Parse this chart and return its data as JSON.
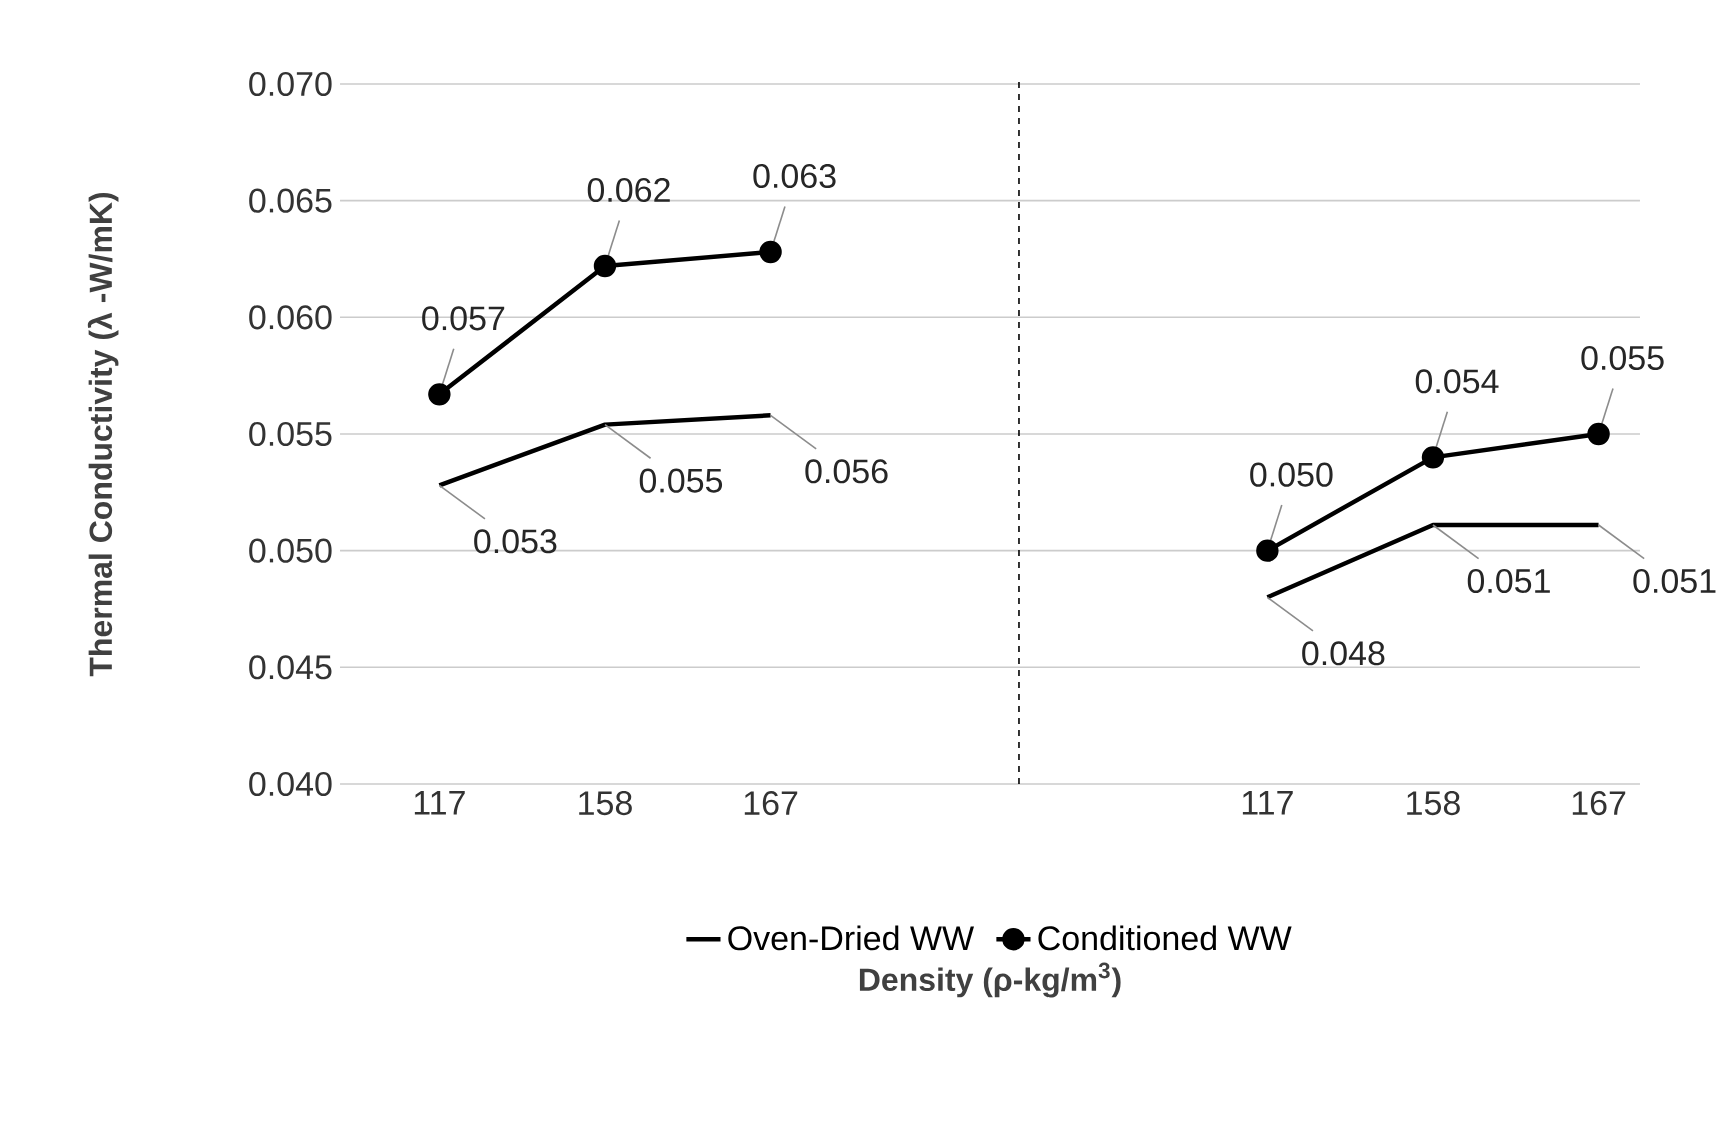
{
  "chart_data": {
    "type": "line",
    "xlabel": "Density (ρ-kg/m$^{3}$)",
    "ylabel": "Thermal Conductivity (λ -W/mK)",
    "categories": [
      "117",
      "158",
      "167",
      null,
      null,
      "117",
      "158",
      "167"
    ],
    "series": [
      {
        "name": "Oven-Dried WW",
        "color": "#000000",
        "marker": "none",
        "values": [
          0.0528,
          0.0554,
          0.0558,
          null,
          null,
          0.048,
          0.0511,
          0.0511
        ],
        "value_labels": [
          "0.053",
          "0.055",
          "0.056",
          null,
          null,
          "0.048",
          "0.051",
          "0.051"
        ]
      },
      {
        "name": "Conditioned WW",
        "color": "#000000",
        "marker": "circle",
        "values": [
          0.0567,
          0.0622,
          0.0628,
          null,
          null,
          0.05,
          0.054,
          0.055
        ],
        "value_labels": [
          "0.057",
          "0.062",
          "0.063",
          null,
          null,
          "0.050",
          "0.054",
          "0.055"
        ]
      }
    ],
    "ylim": [
      0.04,
      0.07
    ],
    "yticks": [
      {
        "value": 0.04,
        "label": "0.040"
      },
      {
        "value": 0.045,
        "label": "0.045"
      },
      {
        "value": 0.05,
        "label": "0.050"
      },
      {
        "value": 0.055,
        "label": "0.055"
      },
      {
        "value": 0.06,
        "label": "0.060"
      },
      {
        "value": 0.065,
        "label": "0.065"
      },
      {
        "value": 0.07,
        "label": "0.070"
      }
    ],
    "grid": "y",
    "legend": "bottom",
    "line_style": "solid"
  }
}
